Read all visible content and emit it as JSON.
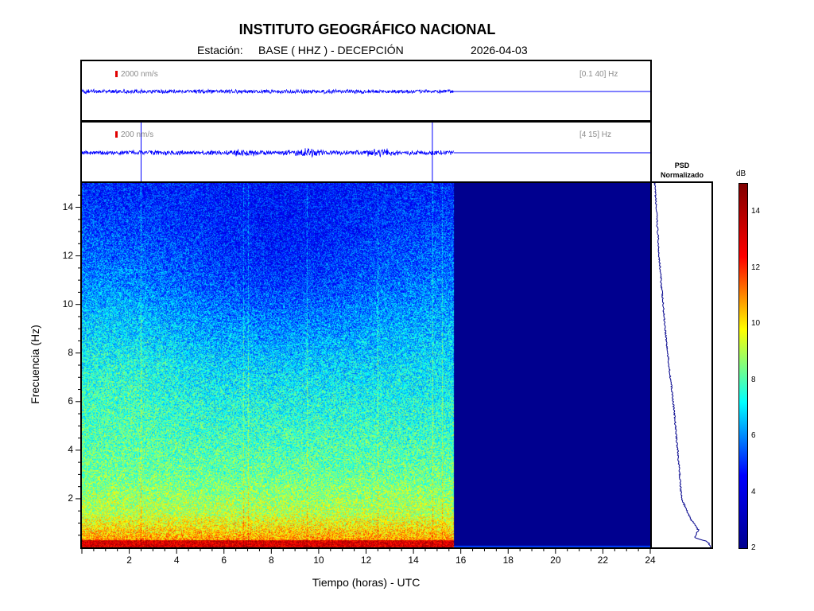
{
  "header": {
    "title": "INSTITUTO GEOGRÁFICO NACIONAL",
    "station_label": "Estación:",
    "station": "BASE ( HHZ ) - DECEPCIÓN",
    "date": "2026-04-03"
  },
  "traces": [
    {
      "scale_label": "2000 nm/s",
      "band_label": "[0.1 40] Hz",
      "data_end_hour": 15.7,
      "spikes_hours": []
    },
    {
      "scale_label": "200 nm/s",
      "band_label": "[4 15] Hz",
      "data_end_hour": 15.7,
      "spikes_hours": [
        2.5,
        14.8
      ],
      "bursts_hours": [
        12.6,
        6.9,
        9.5
      ]
    }
  ],
  "chart_data": {
    "type": "heatmap",
    "xlabel": "Tiempo (horas) - UTC",
    "ylabel": "Frecuencia  (Hz)",
    "xlim": [
      0,
      24
    ],
    "ylim": [
      0,
      15
    ],
    "x_ticks": [
      2,
      4,
      6,
      8,
      10,
      12,
      14,
      16,
      18,
      20,
      22,
      24
    ],
    "y_ticks": [
      2,
      4,
      6,
      8,
      10,
      12,
      14
    ],
    "data_end_hour": 15.7,
    "vertical_lines_hours": [
      2.5,
      6.8,
      7.0,
      9.5,
      12.5,
      14.8,
      15.2
    ],
    "colorbar": {
      "label": "dB",
      "range": [
        2,
        15
      ],
      "ticks": [
        2,
        4,
        6,
        8,
        10,
        12,
        14
      ],
      "colors": [
        "#00008f",
        "#0000ff",
        "#00ffff",
        "#ffff00",
        "#ff0000",
        "#800000"
      ]
    },
    "psd": {
      "title_line1": "PSD",
      "title_line2": "Normalizado",
      "color": "#00008b",
      "profile": [
        {
          "freq": 15.0,
          "value": 0.02
        },
        {
          "freq": 14.0,
          "value": 0.05
        },
        {
          "freq": 12.0,
          "value": 0.1
        },
        {
          "freq": 10.0,
          "value": 0.17
        },
        {
          "freq": 8.0,
          "value": 0.25
        },
        {
          "freq": 6.0,
          "value": 0.35
        },
        {
          "freq": 4.0,
          "value": 0.43
        },
        {
          "freq": 2.0,
          "value": 0.5
        },
        {
          "freq": 1.2,
          "value": 0.65
        },
        {
          "freq": 0.7,
          "value": 0.8
        },
        {
          "freq": 0.4,
          "value": 0.72
        },
        {
          "freq": 0.25,
          "value": 0.95
        },
        {
          "freq": 0.1,
          "value": 1.0
        }
      ]
    }
  }
}
